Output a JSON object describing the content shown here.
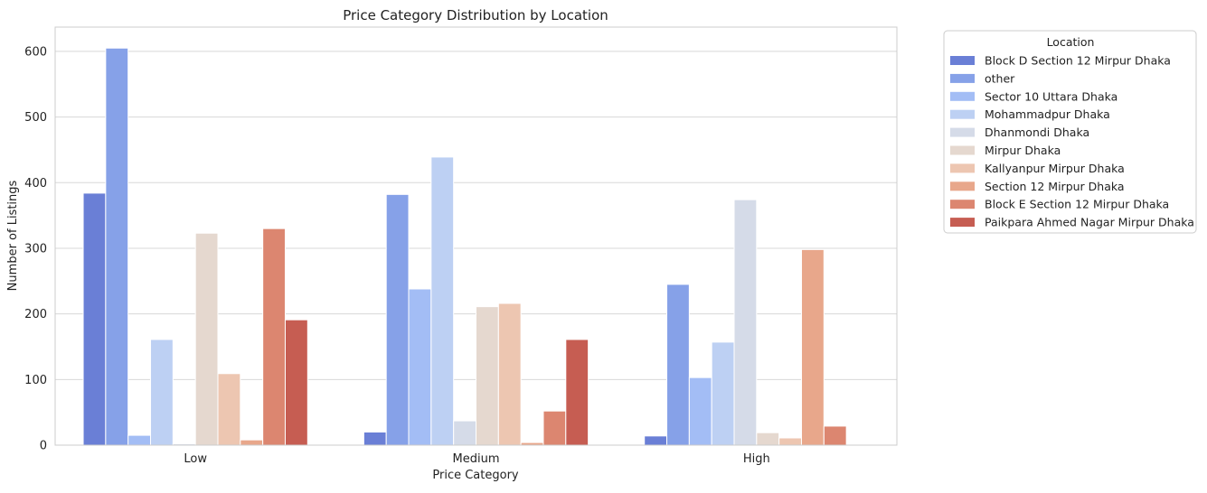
{
  "chart_data": {
    "type": "bar",
    "title": "Price Category Distribution by Location",
    "xlabel": "Price Category",
    "ylabel": "Number of Listings",
    "categories": [
      "Low",
      "Medium",
      "High"
    ],
    "ylim": [
      0,
      637
    ],
    "yticks": [
      0,
      100,
      200,
      300,
      400,
      500,
      600
    ],
    "grid": true,
    "legend": {
      "title": "Location",
      "placement": "outside-top-right"
    },
    "series": [
      {
        "name": "Block D Section 12 Mirpur Dhaka",
        "color": "#6a7fd6",
        "values": [
          384,
          20,
          14
        ]
      },
      {
        "name": "other",
        "color": "#86a1e8",
        "values": [
          605,
          382,
          245
        ]
      },
      {
        "name": "Sector 10 Uttara Dhaka",
        "color": "#a3bdf5",
        "values": [
          15,
          238,
          103
        ]
      },
      {
        "name": "Mohammadpur Dhaka",
        "color": "#bdd0f3",
        "values": [
          161,
          439,
          157
        ]
      },
      {
        "name": "Dhanmondi Dhaka",
        "color": "#d5dbe8",
        "values": [
          2,
          37,
          374
        ]
      },
      {
        "name": "Mirpur Dhaka",
        "color": "#e5d8cf",
        "values": [
          323,
          211,
          19
        ]
      },
      {
        "name": "Kallyanpur Mirpur Dhaka",
        "color": "#edc6b1",
        "values": [
          109,
          216,
          11
        ]
      },
      {
        "name": "Section 12 Mirpur Dhaka",
        "color": "#e8a78b",
        "values": [
          8,
          4,
          298
        ]
      },
      {
        "name": "Block E Section 12 Mirpur Dhaka",
        "color": "#dc8670",
        "values": [
          330,
          52,
          29
        ]
      },
      {
        "name": "Paikpara Ahmed Nagar Mirpur Dhaka",
        "color": "#c65d52",
        "values": [
          191,
          161,
          0
        ]
      }
    ]
  }
}
